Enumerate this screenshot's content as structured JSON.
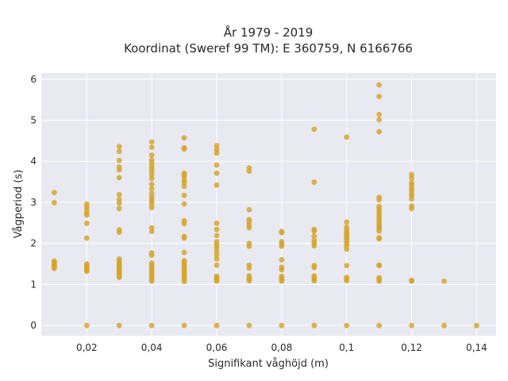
{
  "chart_data": {
    "type": "scatter",
    "title": "År 1979 - 2019",
    "subtitle": "Koordinat (Sweref 99 TM): E 360759, N 6166766",
    "xlabel": "Signifikant våghöjd (m)",
    "ylabel": "Vågperiod (s)",
    "xlim": [
      0.006,
      0.146
    ],
    "ylim": [
      -0.25,
      6.15
    ],
    "x_ticks": [
      0.02,
      0.04,
      0.06,
      0.08,
      0.1,
      0.12,
      0.14
    ],
    "x_tick_labels": [
      "0,02",
      "0,04",
      "0,06",
      "0,08",
      "0,1",
      "0,12",
      "0,14"
    ],
    "y_ticks": [
      0,
      1,
      2,
      3,
      4,
      5,
      6
    ],
    "y_tick_labels": [
      "0",
      "1",
      "2",
      "3",
      "4",
      "5",
      "6"
    ],
    "grid": true,
    "background_color": "#e9e9f1",
    "marker_color": "#d4a52a",
    "columns": [
      {
        "x": 0.01,
        "y": [
          3.24,
          2.99,
          1.57,
          1.54,
          1.51,
          1.48,
          1.45,
          1.42,
          1.39
        ]
      },
      {
        "x": 0.02,
        "y": [
          2.96,
          2.88,
          2.81,
          2.74,
          2.69,
          2.49,
          2.13,
          1.5,
          1.46,
          1.43,
          1.39,
          1.35,
          1.32,
          0
        ]
      },
      {
        "x": 0.03,
        "y": [
          4.36,
          4.24,
          4.02,
          3.86,
          3.79,
          3.6,
          3.19,
          3.07,
          2.98,
          2.85,
          2.33,
          2.27,
          1.62,
          1.57,
          1.53,
          1.49,
          1.45,
          1.41,
          1.37,
          1.33,
          1.29,
          1.25,
          1.21,
          1.17,
          0
        ]
      },
      {
        "x": 0.04,
        "y": [
          4.47,
          4.34,
          4.15,
          4.03,
          3.96,
          3.88,
          3.82,
          3.75,
          3.67,
          3.58,
          3.44,
          3.33,
          3.22,
          3.13,
          3.07,
          3.01,
          2.94,
          2.87,
          2.38,
          2.29,
          1.77,
          1.71,
          1.52,
          1.47,
          1.42,
          1.37,
          1.32,
          1.27,
          1.22,
          1.17,
          1.12,
          1.08,
          0
        ]
      },
      {
        "x": 0.05,
        "y": [
          4.57,
          4.33,
          4.3,
          3.71,
          3.67,
          3.62,
          3.54,
          3.47,
          3.39,
          3.17,
          2.96,
          2.55,
          2.48,
          2.17,
          2.13,
          1.78,
          1.58,
          1.53,
          1.48,
          1.43,
          1.38,
          1.33,
          1.28,
          1.23,
          1.17,
          1.12,
          1.07,
          0
        ]
      },
      {
        "x": 0.06,
        "y": [
          4.38,
          4.28,
          4.2,
          3.91,
          3.71,
          3.42,
          2.49,
          2.34,
          2.19,
          2.04,
          1.96,
          1.89,
          1.8,
          1.71,
          1.62,
          1.47,
          1.2,
          1.16,
          1.12,
          1.08,
          0
        ]
      },
      {
        "x": 0.07,
        "y": [
          3.84,
          3.76,
          2.82,
          2.58,
          2.52,
          2.44,
          2.38,
          2.0,
          1.93,
          1.47,
          1.4,
          1.21,
          1.17,
          1.13,
          1.09,
          0
        ]
      },
      {
        "x": 0.08,
        "y": [
          2.29,
          2.26,
          2.04,
          1.99,
          1.93,
          1.6,
          1.42,
          1.36,
          1.2,
          1.16,
          1.12,
          1.08,
          0
        ]
      },
      {
        "x": 0.09,
        "y": [
          4.78,
          3.49,
          2.34,
          2.3,
          2.18,
          2.08,
          2.01,
          1.94,
          1.46,
          1.41,
          1.21,
          1.17,
          1.13,
          1.09,
          0
        ]
      },
      {
        "x": 0.1,
        "y": [
          4.59,
          2.52,
          2.4,
          2.33,
          2.27,
          2.22,
          2.17,
          2.12,
          2.06,
          2.0,
          1.94,
          1.86,
          1.46,
          1.17,
          1.13,
          1.09,
          0
        ]
      },
      {
        "x": 0.11,
        "y": [
          5.86,
          5.58,
          5.14,
          5.01,
          4.72,
          3.12,
          3.06,
          2.9,
          2.83,
          2.77,
          2.71,
          2.65,
          2.59,
          2.53,
          2.47,
          2.41,
          2.36,
          2.3,
          2.14,
          2.11,
          1.47,
          1.46,
          1.16,
          1.12,
          1.08,
          0
        ]
      },
      {
        "x": 0.12,
        "y": [
          3.68,
          3.59,
          3.48,
          3.42,
          3.35,
          3.29,
          3.22,
          3.16,
          3.08,
          2.91,
          2.85,
          1.1,
          1.08,
          0
        ]
      },
      {
        "x": 0.13,
        "y": [
          1.08,
          0
        ]
      },
      {
        "x": 0.14,
        "y": [
          0
        ]
      }
    ]
  }
}
